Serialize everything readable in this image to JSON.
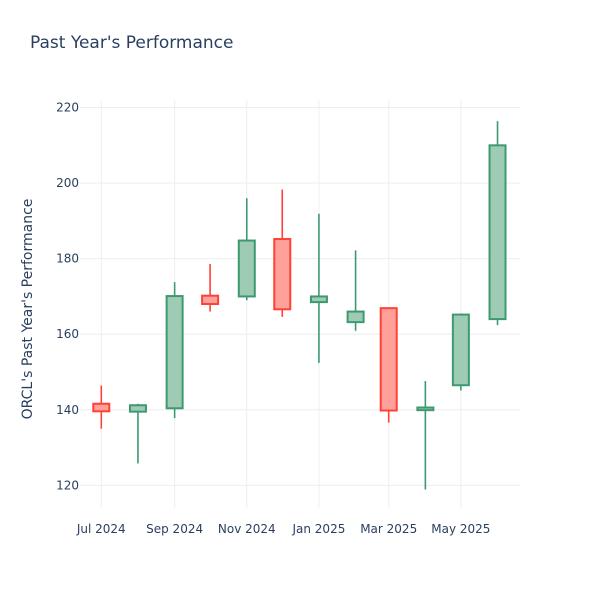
{
  "chart_data": {
    "type": "candlestick",
    "title": "Past Year's Performance",
    "ylabel": "ORCL's Past Year's Performance",
    "xlabel": "",
    "ylim": [
      114,
      222
    ],
    "y_ticks": [
      120,
      140,
      160,
      180,
      200,
      220
    ],
    "x_ticks": [
      {
        "label": "Jul 2024",
        "date": "2024-07-01"
      },
      {
        "label": "Sep 2024",
        "date": "2024-09-01"
      },
      {
        "label": "Nov 2024",
        "date": "2024-11-01"
      },
      {
        "label": "Jan 2025",
        "date": "2025-01-01"
      },
      {
        "label": "Mar 2025",
        "date": "2025-03-01"
      },
      {
        "label": "May 2025",
        "date": "2025-05-01"
      }
    ],
    "grid": true,
    "increasing_color": "#3d9970",
    "increasing_fill": "#9ecbb4",
    "decreasing_color": "#ff4136",
    "decreasing_fill": "#ffa09b",
    "candles": [
      {
        "date": "2024-07-01",
        "open": 141.6,
        "high": 146.4,
        "low": 135.0,
        "close": 139.6
      },
      {
        "date": "2024-08-01",
        "open": 139.5,
        "high": 141.6,
        "low": 125.8,
        "close": 141.2
      },
      {
        "date": "2024-09-01",
        "open": 140.4,
        "high": 173.8,
        "low": 137.8,
        "close": 170.1
      },
      {
        "date": "2024-10-01",
        "open": 170.2,
        "high": 178.6,
        "low": 166.0,
        "close": 168.0
      },
      {
        "date": "2024-11-01",
        "open": 170.0,
        "high": 196.0,
        "low": 169.0,
        "close": 184.8
      },
      {
        "date": "2024-12-01",
        "open": 185.2,
        "high": 198.3,
        "low": 164.6,
        "close": 166.6
      },
      {
        "date": "2025-01-01",
        "open": 168.5,
        "high": 191.9,
        "low": 152.4,
        "close": 170.0
      },
      {
        "date": "2025-02-01",
        "open": 163.2,
        "high": 182.2,
        "low": 160.9,
        "close": 166.0
      },
      {
        "date": "2025-03-01",
        "open": 166.9,
        "high": 166.9,
        "low": 136.6,
        "close": 139.8
      },
      {
        "date": "2025-04-01",
        "open": 139.9,
        "high": 147.6,
        "low": 118.9,
        "close": 140.6
      },
      {
        "date": "2025-05-01",
        "open": 146.5,
        "high": 165.5,
        "low": 145.1,
        "close": 165.2
      },
      {
        "date": "2025-06-01",
        "open": 164.0,
        "high": 216.4,
        "low": 162.4,
        "close": 210.0
      }
    ]
  }
}
